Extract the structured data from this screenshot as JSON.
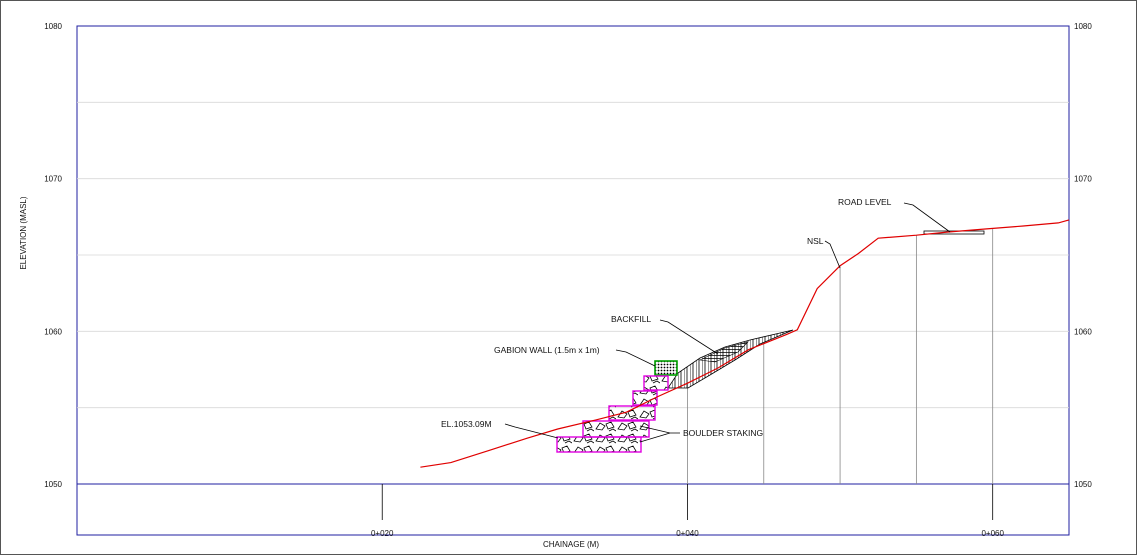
{
  "chart_data": {
    "type": "line",
    "title": "",
    "xlabel": "CHAINAGE (M)",
    "ylabel": "ELEVATION (MASL)",
    "xlim": [
      0,
      65
    ],
    "ylim": [
      1050,
      1080
    ],
    "x_ticks": [
      {
        "value": 20,
        "label": "0+020"
      },
      {
        "value": 40,
        "label": "0+040"
      },
      {
        "value": 60,
        "label": "0+060"
      }
    ],
    "y_ticks": [
      {
        "value": 1050,
        "label": "1050"
      },
      {
        "value": 1060,
        "label": "1060"
      },
      {
        "value": 1070,
        "label": "1070"
      },
      {
        "value": 1080,
        "label": "1080"
      }
    ],
    "grid": true,
    "series": [
      {
        "name": "NSL",
        "color": "#e00000",
        "x": [
          22.5,
          24.5,
          27,
          29.5,
          31.5,
          34,
          36,
          38,
          40,
          42,
          44,
          46.5,
          47.2,
          48.5,
          50,
          51.2,
          52.5,
          55,
          57,
          59.5,
          62,
          64.3,
          65
        ],
        "y": [
          1051.1,
          1051.4,
          1052.2,
          1053,
          1053.6,
          1054.2,
          1054.7,
          1055.7,
          1056.6,
          1057.6,
          1058.8,
          1059.8,
          1060.1,
          1062.8,
          1064.3,
          1065.1,
          1066.1,
          1066.3,
          1066.5,
          1066.7,
          1066.9,
          1067.1,
          1067.3
        ]
      }
    ],
    "station_lines_x": [
      40,
      45,
      50,
      55,
      60
    ],
    "annotations": [
      {
        "text": "ROAD LEVEL",
        "x": 57,
        "y": 1066.4
      },
      {
        "text": "NSL",
        "x": 50,
        "y": 1064.4
      },
      {
        "text": "BACKFILL",
        "x": 42.5,
        "y": 1058.3
      },
      {
        "text": "GABION WALL (1.5m x 1m)",
        "x": 38,
        "y": 1057.5
      },
      {
        "text": "EL.1053.09M",
        "x": 31.5,
        "y": 1053.1
      },
      {
        "text": "BOULDER STAKING",
        "x": 37,
        "y": 1053.2
      }
    ],
    "gabion_colors": {
      "wall": "#e000e0",
      "top_block": "#00a000"
    }
  }
}
